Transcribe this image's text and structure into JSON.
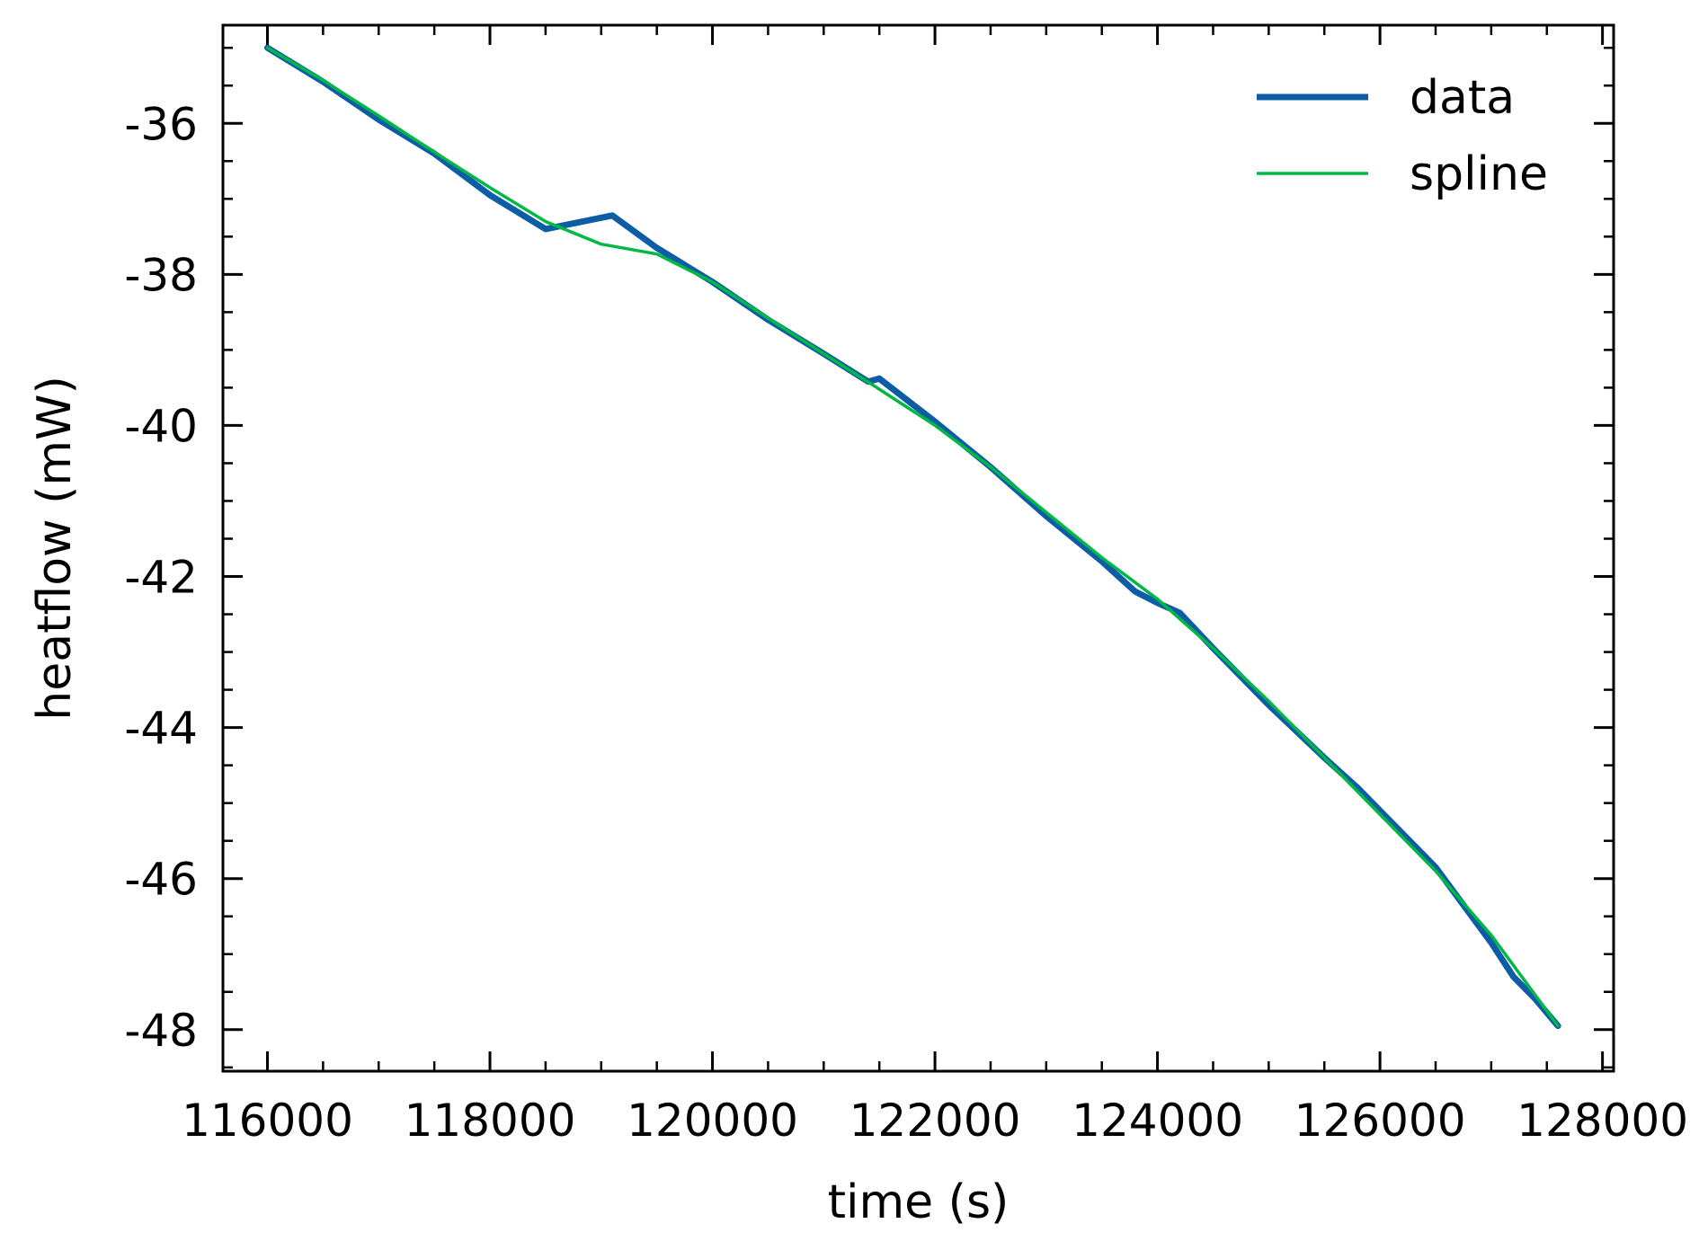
{
  "chart_data": {
    "type": "line",
    "xlabel": "time (s)",
    "ylabel": "heatflow (mW)",
    "xlim": [
      115600,
      128100
    ],
    "ylim": [
      -48.55,
      -34.7
    ],
    "xticks": [
      116000,
      118000,
      120000,
      122000,
      124000,
      126000,
      128000
    ],
    "xtick_labels": [
      "116000",
      "118000",
      "120000",
      "122000",
      "124000",
      "126000",
      "128000"
    ],
    "yticks": [
      -36,
      -38,
      -40,
      -42,
      -44,
      -46,
      -48
    ],
    "ytick_labels": [
      "-36",
      "-38",
      "-40",
      "-42",
      "-44",
      "-46",
      "-48"
    ],
    "x_minor_step": 500,
    "y_minor_step": 0.5,
    "grid": false,
    "legend": {
      "position": "top-right"
    },
    "series": [
      {
        "name": "data",
        "color": "#0c5da5",
        "x": [
          116000,
          116500,
          117000,
          117500,
          118000,
          118500,
          119000,
          119100,
          119500,
          120000,
          120500,
          121000,
          121400,
          121500,
          122000,
          122500,
          123000,
          123500,
          123800,
          124000,
          124200,
          124500,
          125000,
          125500,
          125800,
          126000,
          126500,
          127000,
          127200,
          127400,
          127600
        ],
        "y": [
          -35.0,
          -35.45,
          -35.95,
          -36.4,
          -36.95,
          -37.4,
          -37.25,
          -37.22,
          -37.65,
          -38.1,
          -38.6,
          -39.05,
          -39.42,
          -39.38,
          -39.95,
          -40.55,
          -41.2,
          -41.8,
          -42.2,
          -42.35,
          -42.48,
          -42.95,
          -43.7,
          -44.4,
          -44.8,
          -45.1,
          -45.85,
          -46.85,
          -47.3,
          -47.6,
          -47.95
        ]
      },
      {
        "name": "spline",
        "color": "#00b945",
        "x": [
          116000,
          116500,
          117000,
          117500,
          118000,
          118500,
          119000,
          119500,
          120000,
          120500,
          121000,
          121500,
          122000,
          122500,
          123000,
          123500,
          124000,
          124500,
          125000,
          125500,
          126000,
          126500,
          127000,
          127600
        ],
        "y": [
          -35.0,
          -35.43,
          -35.9,
          -36.38,
          -36.85,
          -37.3,
          -37.6,
          -37.73,
          -38.1,
          -38.58,
          -39.05,
          -39.52,
          -40.0,
          -40.55,
          -41.15,
          -41.75,
          -42.3,
          -42.95,
          -43.65,
          -44.4,
          -45.15,
          -45.9,
          -46.75,
          -47.95
        ]
      }
    ]
  }
}
